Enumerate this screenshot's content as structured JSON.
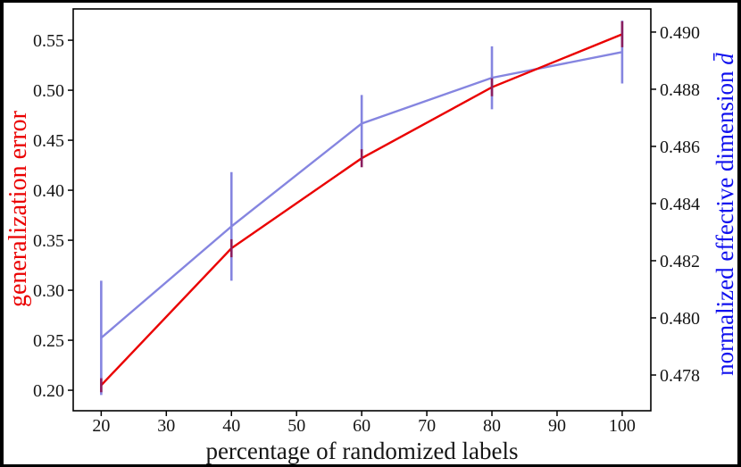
{
  "figure": {
    "xlabel": "percentage of randomized labels",
    "ylabel_left": "generalization error",
    "ylabel_right_text": "normalized effective dimension ",
    "ylabel_right_symbol": "d̄",
    "background": "#000000",
    "plot_background": "#ffffff",
    "colors": {
      "left_label": "#ea0000",
      "right_label": "#0f0fee",
      "red_line": "#ea0000",
      "blue_line": "#8585e0",
      "red_errorbar": "#8b1e5f",
      "blue_errorbar": "#8585e0",
      "spine": "#000000"
    }
  },
  "chart_data": {
    "type": "line",
    "title": "",
    "xlabel": "percentage of randomized labels",
    "ylabel_left": "generalization error",
    "ylabel_right": "normalized effective dimension d̄",
    "grid": false,
    "legend": "none",
    "x": [
      20,
      40,
      60,
      80,
      100
    ],
    "series": [
      {
        "name": "generalization error",
        "axis": "left",
        "color": "#ea0000",
        "errorbar_color": "#8b1e5f",
        "values": [
          0.205,
          0.342,
          0.432,
          0.503,
          0.556
        ],
        "yerr": [
          0.007,
          0.009,
          0.009,
          0.009,
          0.013
        ]
      },
      {
        "name": "normalized effective dimension",
        "axis": "right",
        "color": "#8585e0",
        "errorbar_color": "#8585e0",
        "values": [
          0.4793,
          0.4832,
          0.4868,
          0.4884,
          0.4893
        ],
        "yerr": [
          0.002,
          0.0019,
          0.001,
          0.0011,
          0.0011
        ]
      }
    ],
    "x_ticks": [
      20,
      30,
      40,
      50,
      60,
      70,
      80,
      90,
      100
    ],
    "left_ticks": [
      0.2,
      0.25,
      0.3,
      0.35,
      0.4,
      0.45,
      0.5,
      0.55
    ],
    "right_ticks": [
      0.478,
      0.48,
      0.482,
      0.484,
      0.486,
      0.488,
      0.49
    ],
    "xlim": [
      15.7,
      104.4
    ],
    "ylim_left": [
      0.1795,
      0.5813
    ],
    "ylim_right": [
      0.47675,
      0.49081
    ]
  }
}
